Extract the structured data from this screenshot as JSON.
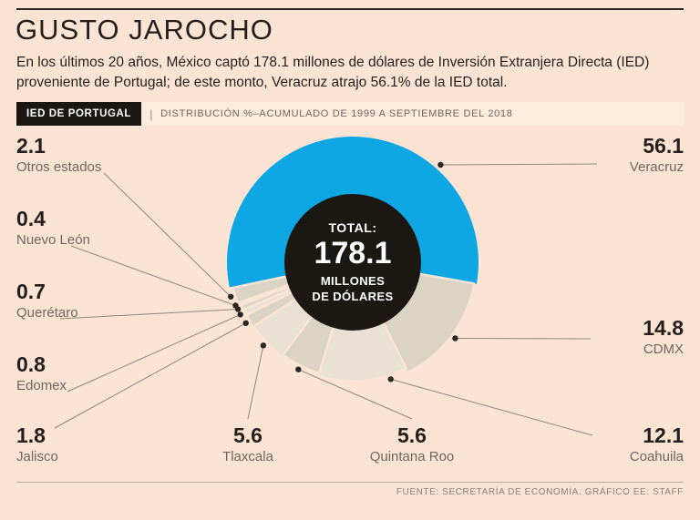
{
  "page": {
    "title": "GUSTO JAROCHO",
    "subtitle": "En los últimos 20 años, México captó 178.1 millones de dólares de Inversión Extranjera Directa (IED) proveniente de Portugal; de este monto, Veracruz atrajo 56.1% de la IED total.",
    "footer": "FUENTE: SECRETARÍA DE ECONOMÍA. GRÁFICO EE: STAFF"
  },
  "header_bar": {
    "tag": "IED DE PORTUGAL",
    "separator": "|",
    "description": "DISTRIBUCIÓN %–ACUMULADO DE 1999 A SEPTIEMBRE DEL 2018"
  },
  "center": {
    "label": "TOTAL:",
    "value": "178.1",
    "unit_line1": "MILLONES",
    "unit_line2": "DE DÓLARES"
  },
  "colors": {
    "background": "#fce4d5",
    "accent_blue": "#0fa7e3",
    "beige_a": "#dbd3c4",
    "beige_b": "#e8e1d4",
    "center_black": "#1b1713",
    "text_dark": "#241f1c",
    "text_gray": "#6f675e",
    "leader_line": "#8f857b",
    "dot": "#2b2722"
  },
  "chart_data": {
    "type": "pie",
    "title": "IED DE PORTUGAL — DISTRIBUCIÓN % ACUMULADO DE 1999 A SEPTIEMBRE DEL 2018",
    "unit": "%",
    "total_value": 178.1,
    "total_label": "TOTAL: 178.1 MILLONES DE DÓLARES",
    "categories": [
      "Veracruz",
      "CDMX",
      "Coahuila",
      "Quintana Roo",
      "Tlaxcala",
      "Jalisco",
      "Edomex",
      "Querétaro",
      "Nuevo León",
      "Otros estados"
    ],
    "values": [
      56.1,
      14.8,
      12.1,
      5.6,
      5.6,
      1.8,
      0.8,
      0.7,
      0.4,
      2.1
    ],
    "legend_position": "labels-around-donut",
    "highlight_category": "Veracruz"
  }
}
